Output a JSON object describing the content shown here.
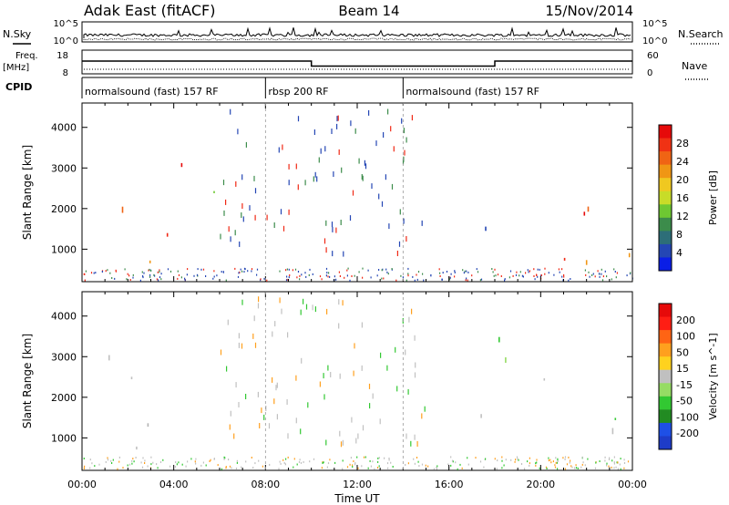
{
  "header": {
    "radar": "Adak East (fitACF)",
    "beam": "Beam 14",
    "date": "15/Nov/2014"
  },
  "status_panels": {
    "nsky_label": "N.Sky",
    "nsearch_label": "N.Search",
    "noise_ticks": [
      "10^5",
      "10^0"
    ],
    "freq_label": "Freq.",
    "freq_unit": "[MHz]",
    "freq_ticks": [
      "18",
      "8"
    ],
    "nave_label": "Nave",
    "nave_ticks": [
      "60",
      "0"
    ],
    "cpid_label": "CPID",
    "cpid_segments": [
      {
        "label": "normalsound (fast) 157 RF",
        "start_hour": 0,
        "end_hour": 8
      },
      {
        "label": "rbsp 200 RF",
        "start_hour": 8,
        "end_hour": 14
      },
      {
        "label": "normalsound (fast) 157 RF",
        "start_hour": 14,
        "end_hour": 24
      }
    ],
    "frequency_mhz": [
      {
        "start_hour": 0,
        "end_hour": 10,
        "value": 13
      },
      {
        "start_hour": 10,
        "end_hour": 18,
        "value": 10.5
      },
      {
        "start_hour": 18,
        "end_hour": 24,
        "value": 13
      }
    ]
  },
  "chart_data": [
    {
      "type": "heatmap",
      "parameter": "Power",
      "ylabel": "Slant Range [km]",
      "xlabel": "",
      "xlim": [
        0,
        24
      ],
      "ylim": [
        200,
        4600
      ],
      "y_ticks": [
        1000,
        2000,
        3000,
        4000
      ],
      "colorbar_label": "Power [dB]",
      "colorbar_ticks": [
        4,
        8,
        12,
        16,
        20,
        24,
        28
      ],
      "colorbar_colors": [
        "#0a1ee6",
        "#2446b4",
        "#2d6e78",
        "#3c8c4b",
        "#6ec832",
        "#c8dc28",
        "#f0c820",
        "#f09614",
        "#f06414",
        "#f03214",
        "#e60a0a"
      ],
      "scatter_regions": [
        {
          "x": [
            0.0,
            4.6
          ],
          "y": [
            700,
            3600
          ],
          "color": "red-orange"
        },
        {
          "x": [
            3.6,
            5.8
          ],
          "y": [
            1500,
            2500
          ],
          "color": "green-blue"
        },
        {
          "x": [
            9.0,
            13.0
          ],
          "y": [
            1300,
            1500
          ],
          "color": "blue"
        },
        {
          "x": [
            12.6,
            13.8
          ],
          "y": [
            1700,
            1950
          ],
          "color": "blue"
        },
        {
          "x": [
            14.0,
            18.4
          ],
          "y": [
            1150,
            1600
          ],
          "color": "blue-green"
        },
        {
          "x": [
            18.0,
            24.0
          ],
          "y": [
            700,
            3600
          ],
          "color": "red-orange"
        }
      ]
    },
    {
      "type": "heatmap",
      "parameter": "Velocity",
      "ylabel": "Slant Range [km]",
      "xlabel": "Time UT",
      "x_ticks": [
        "00:00",
        "04:00",
        "08:00",
        "12:00",
        "16:00",
        "20:00",
        "00:00"
      ],
      "xlim": [
        0,
        24
      ],
      "ylim": [
        200,
        4600
      ],
      "y_ticks": [
        1000,
        2000,
        3000,
        4000
      ],
      "colorbar_label": "Velocity [m s^-1]",
      "colorbar_ticks": [
        200,
        100,
        50,
        15,
        -15,
        -50,
        -100,
        -200
      ],
      "colorbar_colors": [
        "#1e3cc8",
        "#1e50e6",
        "#228b22",
        "#32c832",
        "#96dc64",
        "#c0c0c0",
        "#ffd21e",
        "#ffa01e",
        "#ff6414",
        "#ff1e14",
        "#e60a0a"
      ],
      "scatter_regions": [
        {
          "x": [
            0.0,
            4.6
          ],
          "y": [
            700,
            3600
          ],
          "color": "grey"
        },
        {
          "x": [
            12.6,
            13.8
          ],
          "y": [
            1700,
            1950
          ],
          "color": "green"
        },
        {
          "x": [
            14.0,
            18.4
          ],
          "y": [
            1150,
            1600
          ],
          "color": "orange-grey"
        },
        {
          "x": [
            18.0,
            24.0
          ],
          "y": [
            700,
            3600
          ],
          "color": "grey-green"
        }
      ]
    }
  ]
}
